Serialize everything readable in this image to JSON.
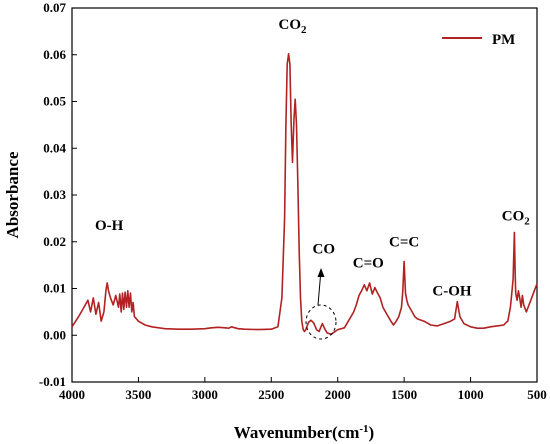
{
  "chart_data": {
    "type": "line",
    "title": "",
    "xlabel": "Wavenumber(cm",
    "xlabel_sup": "-1",
    "xlabel_tail": ")",
    "ylabel": "Absorbance",
    "xlim": [
      4000,
      500
    ],
    "ylim": [
      -0.01,
      0.07
    ],
    "x_reversed": true,
    "x_ticks": [
      4000,
      3500,
      3000,
      2500,
      2000,
      1500,
      1000,
      500
    ],
    "y_ticks": [
      -0.01,
      0.0,
      0.01,
      0.02,
      0.03,
      0.04,
      0.05,
      0.06,
      0.07
    ],
    "x_tick_labels": [
      "4000",
      "3500",
      "3000",
      "2500",
      "2000",
      "1500",
      "1000",
      "500"
    ],
    "y_tick_labels": [
      "-0.01",
      "0.00",
      "0.01",
      "0.02",
      "0.03",
      "0.04",
      "0.05",
      "0.06",
      "0.07"
    ],
    "grid": false,
    "legend_position": "top-right",
    "series": [
      {
        "name": "PM",
        "color": "#b22222",
        "x": [
          4000,
          3950,
          3900,
          3880,
          3860,
          3840,
          3820,
          3800,
          3780,
          3760,
          3745,
          3735,
          3725,
          3710,
          3690,
          3670,
          3650,
          3640,
          3630,
          3620,
          3610,
          3600,
          3590,
          3580,
          3570,
          3560,
          3550,
          3540,
          3530,
          3500,
          3450,
          3400,
          3300,
          3200,
          3100,
          3000,
          2950,
          2900,
          2850,
          2820,
          2800,
          2750,
          2700,
          2600,
          2500,
          2450,
          2420,
          2400,
          2390,
          2380,
          2370,
          2360,
          2350,
          2340,
          2330,
          2320,
          2310,
          2300,
          2290,
          2280,
          2270,
          2260,
          2250,
          2240,
          2230,
          2220,
          2200,
          2180,
          2160,
          2140,
          2130,
          2115,
          2100,
          2080,
          2050,
          2000,
          1950,
          1920,
          1900,
          1880,
          1860,
          1840,
          1820,
          1800,
          1780,
          1760,
          1740,
          1720,
          1700,
          1680,
          1660,
          1640,
          1620,
          1600,
          1580,
          1560,
          1540,
          1520,
          1510,
          1500,
          1490,
          1480,
          1470,
          1450,
          1420,
          1400,
          1350,
          1300,
          1250,
          1200,
          1150,
          1120,
          1100,
          1080,
          1050,
          1000,
          950,
          900,
          850,
          800,
          750,
          730,
          720,
          700,
          690,
          680,
          670,
          665,
          660,
          650,
          640,
          630,
          620,
          610,
          600,
          580,
          560,
          540,
          520,
          500
        ],
        "y": [
          0.0018,
          0.004,
          0.0065,
          0.0075,
          0.005,
          0.008,
          0.0045,
          0.007,
          0.003,
          0.005,
          0.0095,
          0.0112,
          0.0095,
          0.008,
          0.0065,
          0.0085,
          0.006,
          0.0088,
          0.005,
          0.009,
          0.0055,
          0.0092,
          0.006,
          0.0095,
          0.006,
          0.009,
          0.005,
          0.007,
          0.004,
          0.003,
          0.0022,
          0.0018,
          0.0014,
          0.0013,
          0.0013,
          0.0014,
          0.0016,
          0.0017,
          0.0016,
          0.0015,
          0.0018,
          0.0014,
          0.0013,
          0.0012,
          0.0013,
          0.0018,
          0.008,
          0.025,
          0.045,
          0.058,
          0.0602,
          0.058,
          0.045,
          0.037,
          0.046,
          0.0505,
          0.045,
          0.032,
          0.018,
          0.008,
          0.003,
          0.0012,
          0.0008,
          0.0012,
          0.002,
          0.0028,
          0.0032,
          0.0026,
          0.0012,
          0.0008,
          0.0015,
          0.0025,
          0.0015,
          0.0005,
          0.0002,
          0.0012,
          0.0016,
          0.003,
          0.004,
          0.005,
          0.0065,
          0.0085,
          0.0095,
          0.0108,
          0.0095,
          0.0112,
          0.0088,
          0.0102,
          0.009,
          0.008,
          0.006,
          0.005,
          0.004,
          0.003,
          0.0022,
          0.003,
          0.004,
          0.006,
          0.0095,
          0.0158,
          0.009,
          0.0075,
          0.0065,
          0.0055,
          0.004,
          0.0035,
          0.003,
          0.0022,
          0.002,
          0.0025,
          0.003,
          0.0035,
          0.0072,
          0.004,
          0.0025,
          0.0018,
          0.0015,
          0.0015,
          0.0018,
          0.002,
          0.0022,
          0.0028,
          0.003,
          0.006,
          0.009,
          0.012,
          0.022,
          0.014,
          0.009,
          0.0075,
          0.0095,
          0.008,
          0.006,
          0.0085,
          0.0065,
          0.005,
          0.0065,
          0.008,
          0.0095,
          0.011
        ]
      }
    ],
    "annotations": [
      {
        "text": "O-H",
        "x": 3720,
        "y": 0.0225
      },
      {
        "text": "CO",
        "sub": "2",
        "x": 2340,
        "y": 0.0655
      },
      {
        "text": "CO",
        "x": 2105,
        "y": 0.0175
      },
      {
        "text": "C=O",
        "x": 1770,
        "y": 0.0145
      },
      {
        "text": "C=C",
        "x": 1500,
        "y": 0.019
      },
      {
        "text": "C-OH",
        "x": 1140,
        "y": 0.0085
      },
      {
        "text": "CO",
        "sub": "2",
        "x": 660,
        "y": 0.0245
      }
    ]
  }
}
